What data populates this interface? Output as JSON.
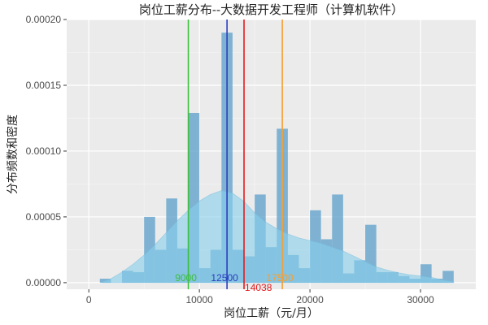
{
  "chart_data": {
    "type": "bar",
    "title": "岗位工薪分布--大数据开发工程师（计算机软件）",
    "xlabel": "岗位工薪（元/月）",
    "ylabel": "分布频数和密度",
    "xlim": [
      -2000,
      35000
    ],
    "ylim": [
      -5e-06,
      0.0002
    ],
    "x_ticks": [
      0,
      10000,
      20000,
      30000
    ],
    "x_tick_labels": [
      "0",
      "10000",
      "20000",
      "30000"
    ],
    "y_ticks": [
      0,
      5e-05,
      0.0001,
      0.00015,
      0.0002
    ],
    "y_tick_labels": [
      "0.00000",
      "0.00005",
      "0.00010",
      "0.00015",
      "0.00020"
    ],
    "grid": true,
    "histogram": {
      "bin_width": 1000,
      "bin_starts": [
        1000,
        3000,
        4000,
        5000,
        6000,
        7000,
        8000,
        9000,
        10000,
        11000,
        12000,
        13000,
        14000,
        15000,
        16000,
        17000,
        18000,
        19000,
        20000,
        21000,
        22000,
        23000,
        24000,
        25000,
        26000,
        27000,
        28000,
        29000,
        30000,
        31000,
        32000
      ],
      "densities": [
        3e-06,
        9e-06,
        8e-06,
        5e-05,
        2.5e-05,
        6.4e-05,
        2.6e-05,
        0.000129,
        1.1e-05,
        2.5e-05,
        0.00019,
        2.5e-05,
        2e-05,
        6.7e-05,
        2.7e-05,
        0.000117,
        2.1e-05,
        1.1e-05,
        5.5e-05,
        3.3e-05,
        6.7e-05,
        7e-06,
        1.7e-05,
        4.4e-05,
        8e-06,
        8e-06,
        5e-06,
        3e-06,
        1.4e-05,
        3e-06,
        9e-06
      ],
      "fill": "#5b9fc9"
    },
    "density_curve": {
      "x": [
        1200,
        2000,
        3000,
        4000,
        5000,
        6000,
        7000,
        8000,
        9000,
        10000,
        11000,
        12000,
        13000,
        14000,
        15000,
        16000,
        17000,
        18000,
        19000,
        20000,
        21000,
        22000,
        23000,
        24000,
        25000,
        26000,
        27000,
        28000,
        29000,
        30000,
        31000,
        32000,
        33000
      ],
      "y": [
        5e-07,
        3e-06,
        8e-06,
        1.4e-05,
        2.1e-05,
        2.9e-05,
        3.8e-05,
        4.7e-05,
        5.5e-05,
        6.2e-05,
        6.7e-05,
        7e-05,
        6.8e-05,
        6.2e-05,
        5.3e-05,
        4.6e-05,
        4.1e-05,
        3.7e-05,
        3.4e-05,
        3.2e-05,
        3e-05,
        2.7e-05,
        2.4e-05,
        2e-05,
        1.6e-05,
        1.2e-05,
        9.5e-06,
        7.5e-06,
        6e-06,
        5e-06,
        4e-06,
        2e-06,
        8e-07
      ],
      "fill": "#87ceeb"
    },
    "vlines": [
      {
        "x": 9000,
        "label": "9000",
        "color": "#3cbf3c"
      },
      {
        "x": 12500,
        "label": "12500",
        "color": "#2b3fbf"
      },
      {
        "x": 14038,
        "label": "14038",
        "color": "#e41a1c"
      },
      {
        "x": 17500,
        "label": "17500",
        "color": "#f5a033"
      }
    ],
    "panel_background": "#ebebeb"
  }
}
